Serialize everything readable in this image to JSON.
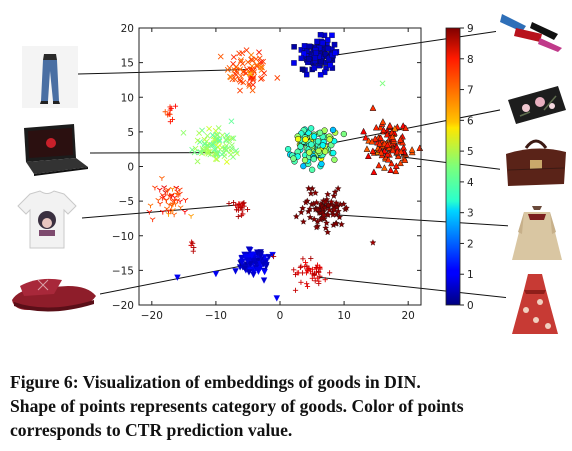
{
  "caption": {
    "line1": "Figure 6: Visualization of embeddings of goods in DIN.",
    "line2": "Shape of points represents category of goods. Color of points",
    "line3": "corresponds to CTR prediction value."
  },
  "chart_data": {
    "type": "scatter",
    "title": "",
    "xlabel": "",
    "ylabel": "",
    "xlim": [
      -22,
      22
    ],
    "ylim": [
      -20,
      20
    ],
    "x_ticks": [
      -20,
      -10,
      0,
      10,
      20
    ],
    "y_ticks": [
      -20,
      -15,
      -10,
      -5,
      0,
      5,
      10,
      15,
      20
    ],
    "grid": false,
    "colorbar": {
      "label": "",
      "range": [
        0,
        9
      ],
      "ticks": [
        0,
        1,
        2,
        3,
        4,
        5,
        6,
        7,
        8,
        9
      ],
      "colormap": "jet"
    },
    "clusters": [
      {
        "marker": "x",
        "center": [
          -5,
          14
        ],
        "spread": [
          3,
          3
        ],
        "ctr": 7.2,
        "ctr_spread": 0.5,
        "count": 70
      },
      {
        "marker": "square",
        "center": [
          6,
          16
        ],
        "spread": [
          2.8,
          2.3
        ],
        "ctr": 0.7,
        "ctr_spread": 0.4,
        "count": 110
      },
      {
        "marker": "+",
        "center": [
          -17,
          8
        ],
        "spread": [
          0.8,
          1.3
        ],
        "ctr": 7.6,
        "ctr_spread": 0.4,
        "count": 10
      },
      {
        "marker": "x",
        "center": [
          -10,
          3
        ],
        "spread": [
          3.2,
          2.3
        ],
        "ctr": 4.6,
        "ctr_spread": 0.5,
        "count": 90
      },
      {
        "marker": "circle",
        "center": [
          5,
          3
        ],
        "spread": [
          3,
          2.3
        ],
        "ctr": 4.2,
        "ctr_spread": 1.1,
        "count": 110
      },
      {
        "marker": "triangle-up",
        "center": [
          17,
          3
        ],
        "spread": [
          3,
          3.3
        ],
        "ctr": 7.5,
        "ctr_spread": 0.4,
        "count": 110
      },
      {
        "marker": "tri-down",
        "center": [
          -17,
          -5
        ],
        "spread": [
          2.5,
          2.5
        ],
        "ctr": 7.3,
        "ctr_spread": 0.6,
        "count": 50
      },
      {
        "marker": "+",
        "center": [
          -6,
          -6
        ],
        "spread": [
          1.4,
          1.2
        ],
        "ctr": 8.5,
        "ctr_spread": 0.3,
        "count": 22
      },
      {
        "marker": "star",
        "center": [
          7,
          -6
        ],
        "spread": [
          3.3,
          2.3
        ],
        "ctr": 9,
        "ctr_spread": 0.1,
        "count": 85
      },
      {
        "marker": "+",
        "center": [
          -14,
          -11.5
        ],
        "spread": [
          0.6,
          0.8
        ],
        "ctr": 8.6,
        "ctr_spread": 0.3,
        "count": 5
      },
      {
        "marker": "triangle-down",
        "center": [
          -4,
          -14
        ],
        "spread": [
          2.5,
          1.8
        ],
        "ctr": 0.8,
        "ctr_spread": 0.4,
        "count": 90
      },
      {
        "marker": "+",
        "center": [
          5,
          -15
        ],
        "spread": [
          2.3,
          2.2
        ],
        "ctr": 8.3,
        "ctr_spread": 0.3,
        "count": 45
      }
    ],
    "outliers": [
      {
        "marker": "x",
        "x": 16,
        "y": 12,
        "ctr": 4.5
      },
      {
        "marker": "triangle-down",
        "x": -16,
        "y": -16,
        "ctr": 1
      },
      {
        "marker": "triangle-down",
        "x": -10,
        "y": -15.5,
        "ctr": 1
      },
      {
        "marker": "triangle-down",
        "x": -0.5,
        "y": -19,
        "ctr": 1
      },
      {
        "marker": "star",
        "x": 14.5,
        "y": -11,
        "ctr": 8.7
      },
      {
        "marker": "+",
        "x": -1,
        "y": -13,
        "ctr": 8.7
      }
    ],
    "annotations": [
      {
        "item": "jeans-thumbnail",
        "target": [
          -5,
          14
        ]
      },
      {
        "item": "laptop-thumbnail",
        "target": [
          -10,
          2
        ]
      },
      {
        "item": "tshirt-thumbnail",
        "target": [
          -6,
          -5.5
        ]
      },
      {
        "item": "slippers-thumbnail",
        "target": [
          -4,
          -14
        ]
      },
      {
        "item": "lipstick-thumbnail",
        "target": [
          8,
          16
        ]
      },
      {
        "item": "phone-case-thumbnail",
        "target": [
          6,
          3
        ]
      },
      {
        "item": "handbag-thumbnail",
        "target": [
          18,
          1.5
        ]
      },
      {
        "item": "coat-thumbnail",
        "target": [
          9,
          -7
        ]
      },
      {
        "item": "dress-thumbnail",
        "target": [
          6,
          -16
        ]
      }
    ]
  }
}
